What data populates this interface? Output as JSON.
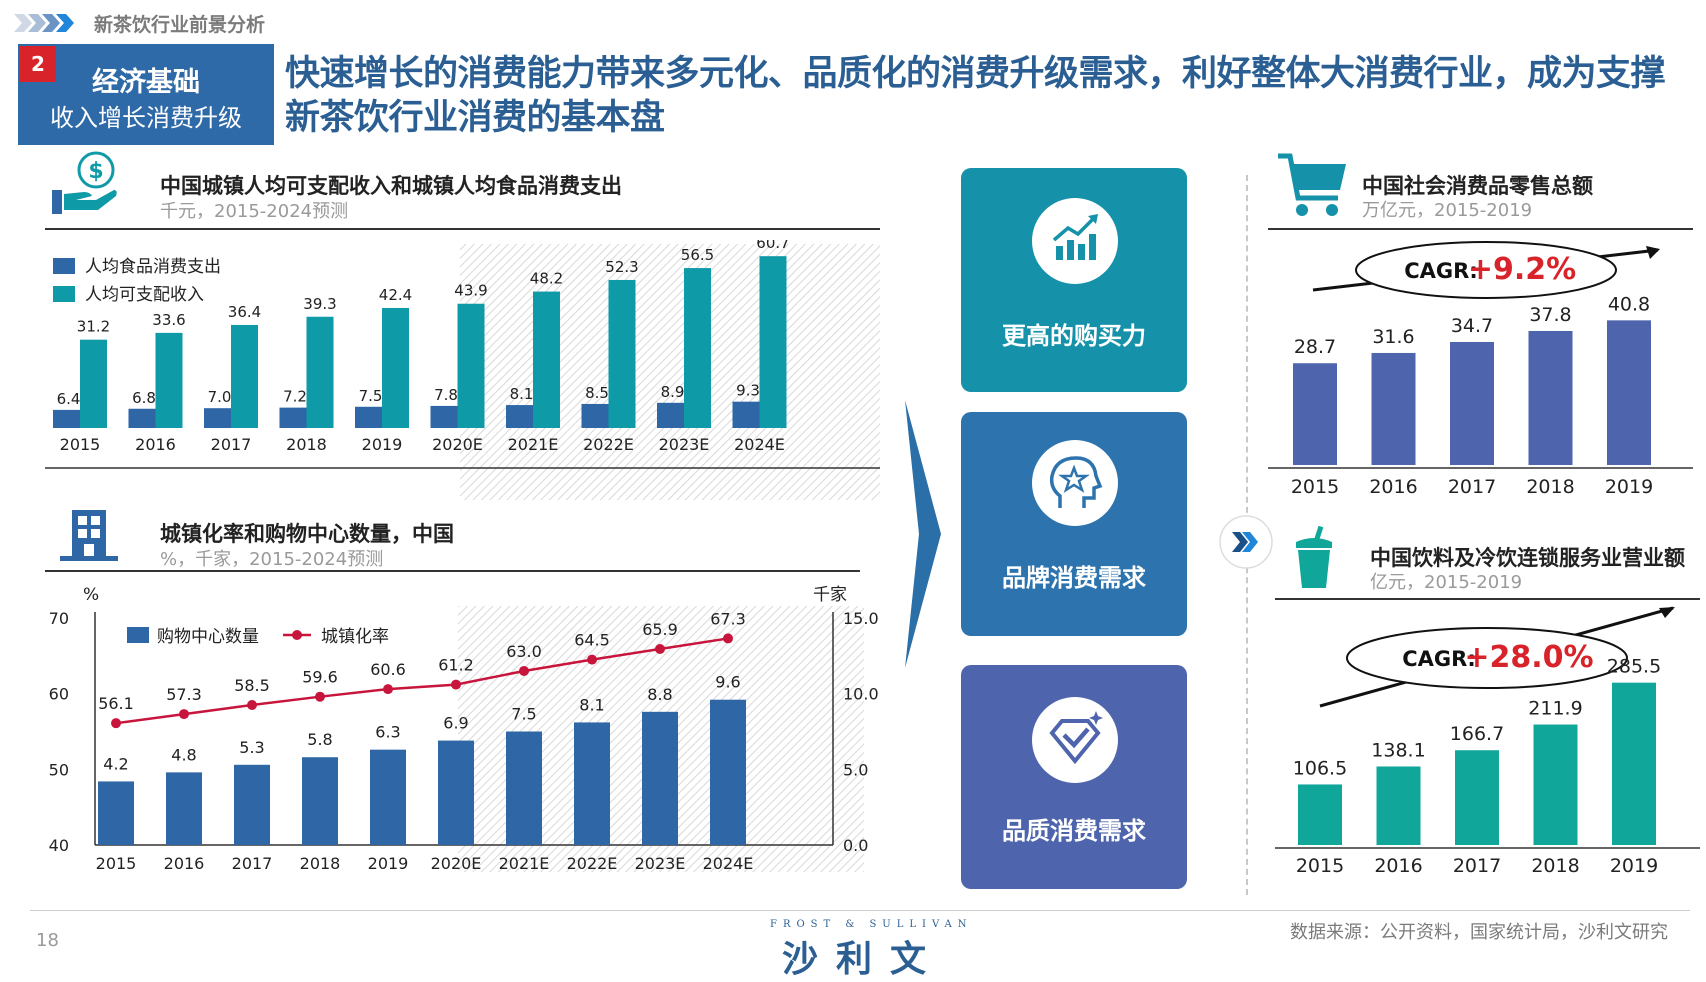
{
  "header": {
    "breadcrumb": "新茶饮行业前景分析",
    "section_number": "2",
    "section_title": "经济基础",
    "section_subtitle": "收入增长消费升级",
    "headline": "快速增长的消费能力带来多元化、品质化的消费升级需求，利好整体大消费行业，成为支撑新茶饮行业消费的基本盘"
  },
  "colors": {
    "teal": "#0f9aa8",
    "blue": "#2e66a6",
    "navy": "#28507f",
    "periwinkle": "#4e65ad",
    "green": "#10a79a",
    "red": "#d8232a",
    "crimson": "#c8153c"
  },
  "cards": [
    {
      "label": "更高的购买力",
      "icon": "growth-chart-icon",
      "color": "#1591a9"
    },
    {
      "label": "品牌消费需求",
      "icon": "head-star-icon",
      "color": "#2d73ad"
    },
    {
      "label": "品质消费需求",
      "icon": "diamond-check-icon",
      "color": "#4e65ad"
    }
  ],
  "chart_data": [
    {
      "type": "bar",
      "title": "中国城镇人均可支配收入和城镇人均食品消费支出",
      "subtitle": "千元，2015-2024预测",
      "categories": [
        "2015",
        "2016",
        "2017",
        "2018",
        "2019",
        "2020E",
        "2021E",
        "2022E",
        "2023E",
        "2024E"
      ],
      "series": [
        {
          "name": "人均食品消费支出",
          "values": [
            6.4,
            6.8,
            7.0,
            7.2,
            7.5,
            7.8,
            8.1,
            8.5,
            8.9,
            9.3
          ],
          "labels": [
            "6.4",
            "6.8",
            "7.0",
            "7.2",
            "7.5",
            "7.8",
            "8.1",
            "8.5",
            "8.9",
            "9.3"
          ]
        },
        {
          "name": "人均可支配收入",
          "values": [
            31.2,
            33.6,
            36.4,
            39.3,
            42.4,
            43.9,
            48.2,
            52.3,
            56.5,
            60.7
          ],
          "labels": [
            "31.2",
            "33.6",
            "36.4",
            "39.3",
            "42.4",
            "43.9",
            "48.2",
            "52.3",
            "56.5",
            "60.7"
          ]
        }
      ],
      "forecast_from": "2020E",
      "ylim": [
        0,
        65
      ]
    },
    {
      "type": "bar+line",
      "title": "城镇化率和购物中心数量，中国",
      "subtitle": "%，千家，2015-2024预测",
      "left_axis_label": "%",
      "right_axis_label": "千家",
      "left_ticks": [
        "70",
        "60",
        "50",
        "40"
      ],
      "right_ticks": [
        "15.0",
        "10.0",
        "5.0",
        "0.0"
      ],
      "left_ylim": [
        40,
        70
      ],
      "right_ylim": [
        0,
        15
      ],
      "categories": [
        "2015",
        "2016",
        "2017",
        "2018",
        "2019",
        "2020E",
        "2021E",
        "2022E",
        "2023E",
        "2024E"
      ],
      "series": [
        {
          "name": "购物中心数量",
          "kind": "bar",
          "axis": "right",
          "values": [
            4.2,
            4.8,
            5.3,
            5.8,
            6.3,
            6.9,
            7.5,
            8.1,
            8.8,
            9.6
          ],
          "labels": [
            "4.2",
            "4.8",
            "5.3",
            "5.8",
            "6.3",
            "6.9",
            "7.5",
            "8.1",
            "8.8",
            "9.6"
          ]
        },
        {
          "name": "城镇化率",
          "kind": "line",
          "axis": "left",
          "values": [
            56.1,
            57.3,
            58.5,
            59.6,
            60.6,
            61.2,
            63.0,
            64.5,
            65.9,
            67.3
          ],
          "labels": [
            "56.1",
            "57.3",
            "58.5",
            "59.6",
            "60.6",
            "61.2",
            "63.0",
            "64.5",
            "65.9",
            "67.3"
          ]
        }
      ],
      "forecast_from": "2020E"
    },
    {
      "type": "bar",
      "title": "中国社会消费品零售总额",
      "subtitle": "万亿元，2015-2019",
      "categories": [
        "2015",
        "2016",
        "2017",
        "2018",
        "2019"
      ],
      "values": [
        28.7,
        31.6,
        34.7,
        37.8,
        40.8
      ],
      "labels": [
        "28.7",
        "31.6",
        "34.7",
        "37.8",
        "40.8"
      ],
      "cagr_label": "CAGR:",
      "cagr_value": "+9.2%",
      "ylim": [
        0,
        55
      ]
    },
    {
      "type": "bar",
      "title": "中国饮料及冷饮连锁服务业营业额",
      "subtitle": "亿元，2015-2019",
      "categories": [
        "2015",
        "2016",
        "2017",
        "2018",
        "2019"
      ],
      "values": [
        106.5,
        138.1,
        166.7,
        211.9,
        285.5
      ],
      "labels": [
        "106.5",
        "138.1",
        "166.7",
        "211.9",
        "285.5"
      ],
      "cagr_label": "CAGR:",
      "cagr_value": "+28.0%",
      "ylim": [
        0,
        350
      ]
    }
  ],
  "footer": {
    "page_number": "18",
    "logo_small": "FROST & SULLIVAN",
    "logo_cn": "沙利文",
    "source": "数据来源：公开资料，国家统计局，沙利文研究"
  }
}
